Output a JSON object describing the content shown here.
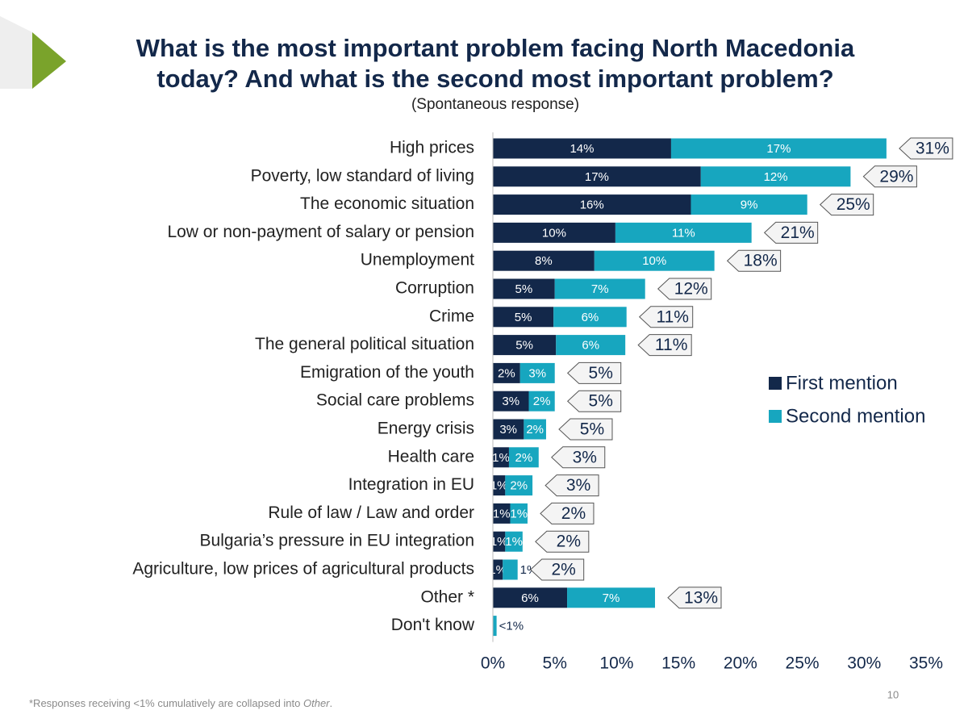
{
  "title_lines": [
    "What is the most important problem facing North Macedonia",
    "today? And what is the second most important problem?"
  ],
  "subtitle": "(Spontaneous response)",
  "footnote": [
    "*Responses receiving <1% cumulatively are collapsed into ",
    "Other",
    "."
  ],
  "page_number": "10",
  "chart_data": {
    "type": "stacked-barh",
    "categories": [
      "High prices",
      "Poverty, low standard of living",
      "The economic situation",
      "Low or non-payment of salary or pension",
      "Unemployment",
      "Corruption",
      "Crime",
      "The general political situation",
      "Emigration of the youth",
      "Social care problems",
      "Energy crisis",
      "Health care",
      "Integration in EU",
      "Rule of law / Law and order",
      "Bulgaria’s pressure in EU integration",
      "Agriculture, low prices of agricultural products",
      "Other *",
      "Don't know"
    ],
    "series": [
      {
        "name": "First mention",
        "color": "#13284a",
        "values": [
          14.4,
          16.8,
          16.0,
          9.9,
          8.2,
          5.0,
          4.9,
          5.1,
          2.2,
          2.9,
          2.5,
          1.3,
          1.0,
          1.4,
          1.0,
          0.8,
          6.0,
          null
        ],
        "value_labels": [
          "14%",
          "17%",
          "16%",
          "10%",
          "8%",
          "5%",
          "5%",
          "5%",
          "2%",
          "3%",
          "3%",
          "1%",
          "1%",
          "1%",
          "1%",
          "1%",
          "6%",
          null
        ]
      },
      {
        "name": "Second mention",
        "color": "#17a6bf",
        "values": [
          17.4,
          12.1,
          9.4,
          11.0,
          9.7,
          7.3,
          5.9,
          5.6,
          2.8,
          2.1,
          1.8,
          2.4,
          2.2,
          1.4,
          1.4,
          1.2,
          7.1,
          0.3
        ],
        "value_labels": [
          "17%",
          "12%",
          "9%",
          "11%",
          "10%",
          "7%",
          "6%",
          "6%",
          "3%",
          "2%",
          "2%",
          "2%",
          "2%",
          "1%",
          "1%",
          "1%",
          "7%",
          "<1%"
        ]
      }
    ],
    "totals": {
      "values": [
        31,
        29,
        25,
        21,
        18,
        12,
        11,
        11,
        5,
        5,
        5,
        3,
        3,
        2,
        2,
        2,
        13,
        null
      ],
      "value_labels": [
        "31%",
        "29%",
        "25%",
        "21%",
        "18%",
        "12%",
        "11%",
        "11%",
        "5%",
        "5%",
        "5%",
        "3%",
        "3%",
        "2%",
        "2%",
        "2%",
        "13%",
        null
      ]
    },
    "xlim": [
      0,
      35
    ],
    "xticks": [
      {
        "value": 0,
        "label": "0%"
      },
      {
        "value": 5,
        "label": "5%"
      },
      {
        "value": 10,
        "label": "10%"
      },
      {
        "value": 15,
        "label": "15%"
      },
      {
        "value": 20,
        "label": "20%"
      },
      {
        "value": 25,
        "label": "25%"
      },
      {
        "value": 30,
        "label": "30%"
      },
      {
        "value": 35,
        "label": "35%"
      }
    ],
    "legend": "right"
  }
}
